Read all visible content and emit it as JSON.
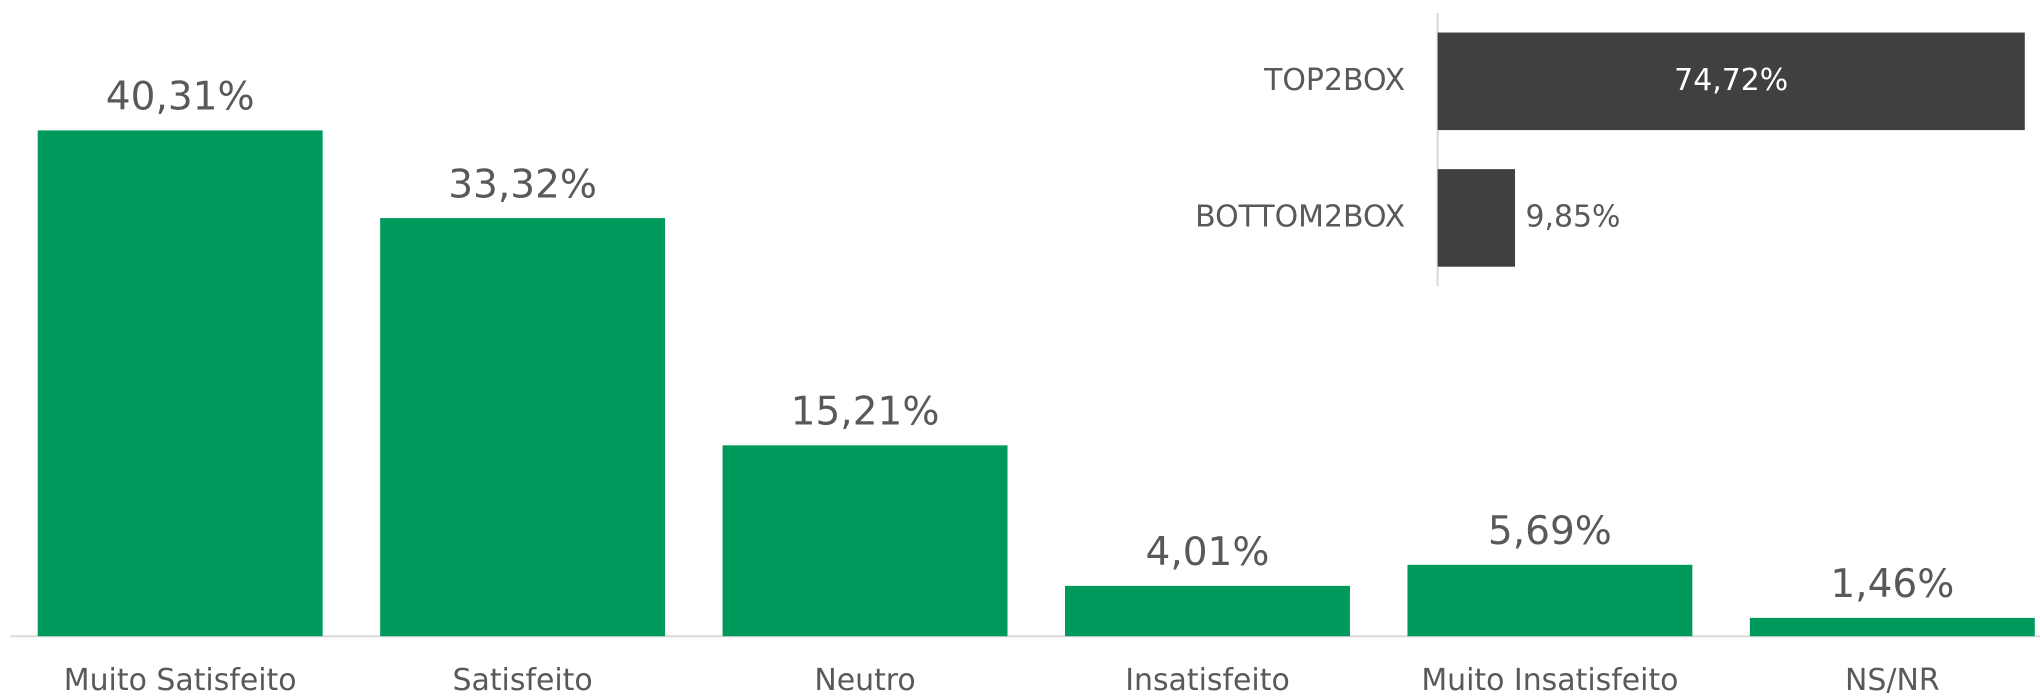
{
  "chart_data": [
    {
      "type": "bar",
      "categories": [
        "Muito Satisfeito",
        "Satisfeito",
        "Neutro",
        "Insatisfeito",
        "Muito Insatisfeito",
        "NS/NR"
      ],
      "values": [
        40.31,
        33.32,
        15.21,
        4.01,
        5.69,
        1.46
      ],
      "value_labels": [
        "40,31%",
        "33,32%",
        "15,21%",
        "4,01%",
        "5,69%",
        "1,46%"
      ],
      "color": "#00995c",
      "ylim": [
        0,
        45
      ]
    },
    {
      "type": "hbar",
      "categories": [
        "TOP2BOX",
        "BOTTOM2BOX"
      ],
      "values": [
        74.72,
        9.85
      ],
      "value_labels": [
        "74,72%",
        "9,85%"
      ],
      "color": "#404040",
      "xlim": [
        0,
        75
      ]
    }
  ]
}
